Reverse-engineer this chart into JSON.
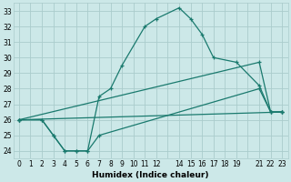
{
  "xlabel": "Humidex (Indice chaleur)",
  "background_color": "#cce8e8",
  "grid_color": "#aacccc",
  "line_color": "#1a7a6e",
  "xlim": [
    -0.5,
    23.5
  ],
  "ylim": [
    23.5,
    33.5
  ],
  "yticks": [
    24,
    25,
    26,
    27,
    28,
    29,
    30,
    31,
    32,
    33
  ],
  "xtick_labels": [
    "0",
    "1",
    "2",
    "3",
    "4",
    "5",
    "6",
    "7",
    "8",
    "9",
    "10",
    "11",
    "12",
    "",
    "14",
    "15",
    "16",
    "17",
    "18",
    "19",
    "",
    "21",
    "22",
    "23"
  ],
  "xtick_positions": [
    0,
    1,
    2,
    3,
    4,
    5,
    6,
    7,
    8,
    9,
    10,
    11,
    12,
    13,
    14,
    15,
    16,
    17,
    18,
    19,
    20,
    21,
    22,
    23
  ],
  "lines": [
    {
      "x": [
        0,
        2,
        3,
        4,
        5,
        6,
        7,
        8,
        9,
        11,
        12,
        14,
        15,
        16,
        17,
        19,
        21,
        22,
        23
      ],
      "y": [
        26,
        26,
        25,
        24,
        24,
        24,
        27.5,
        28,
        29.5,
        32,
        32.5,
        33.2,
        32.5,
        31.5,
        30,
        29.7,
        28.2,
        26.5,
        26.5
      ]
    },
    {
      "x": [
        0,
        2,
        3,
        4,
        5,
        6,
        7,
        21,
        22,
        23
      ],
      "y": [
        26,
        26,
        25,
        24,
        24,
        24,
        25,
        28,
        26.5,
        26.5
      ]
    },
    {
      "x": [
        0,
        21,
        22,
        23
      ],
      "y": [
        26,
        29.7,
        26.5,
        26.5
      ]
    },
    {
      "x": [
        0,
        23
      ],
      "y": [
        26,
        26.5
      ]
    }
  ]
}
